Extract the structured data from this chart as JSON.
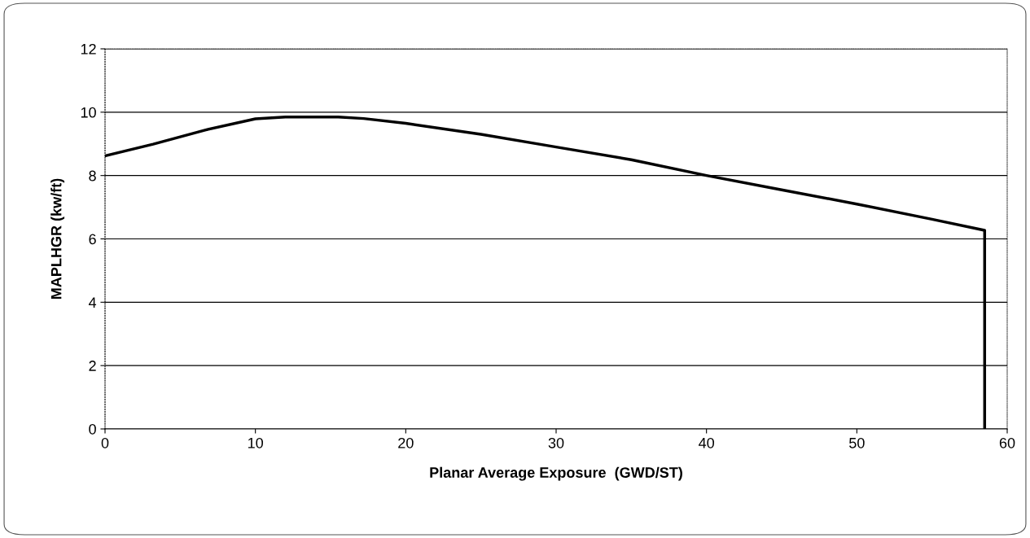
{
  "chart_data": {
    "type": "line",
    "xlabel": "Planar Average Exposure  (GWD/ST)",
    "ylabel": "MAPLHGR (kw/ft)",
    "series": [
      {
        "color": "#000000",
        "x": [
          0,
          3.2,
          6.7,
          10,
          12,
          15.5,
          17.2,
          20,
          25,
          30,
          35,
          40,
          45,
          50,
          55,
          58.5,
          58.5
        ],
        "values": [
          8.62,
          8.99,
          9.44,
          9.79,
          9.85,
          9.85,
          9.8,
          9.65,
          9.3,
          8.9,
          8.5,
          8.0,
          7.55,
          7.1,
          6.62,
          6.27,
          0
        ]
      }
    ],
    "xlim": [
      0,
      60
    ],
    "xticks": [
      0,
      10,
      20,
      30,
      40,
      50,
      60
    ],
    "ylim": [
      0,
      12
    ],
    "yticks": [
      0,
      2,
      4,
      6,
      8,
      10,
      12
    ],
    "grid": "y",
    "marker": "none",
    "line_style": "solid"
  }
}
